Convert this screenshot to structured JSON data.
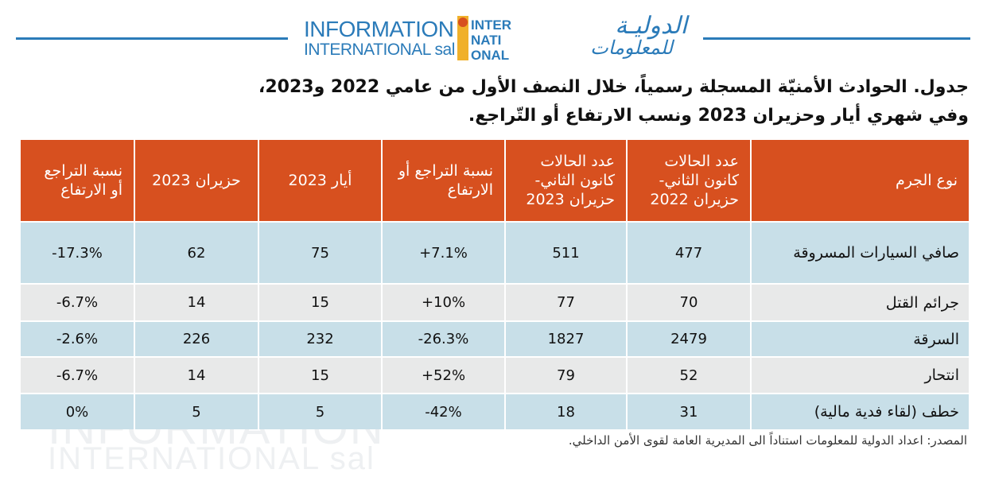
{
  "logo": {
    "en_line1": "INFORMATION",
    "en_line2": "INTERNATIONAL sal",
    "mark_line1": "INTER",
    "mark_line2": "NATI",
    "mark_line3": "ONAL",
    "ar_line1": "الدوليـة",
    "ar_line2": "للمعلومات",
    "brand_blue": "#2b7bb9",
    "brand_orange": "#f0b02a"
  },
  "title": {
    "line1": "جدول. الحوادث الأمنيّة المسجلة رسمياً، خلال النصف الأول من عامي 2022 و2023،",
    "line2": "وفي شهري أيار وحزيران 2023 ونسب الارتفاع أو التّراجع."
  },
  "table": {
    "header_color": "#d7501f",
    "columns": [
      "نوع الجرم",
      "عدد الحالات كانون الثاني- حزيران 2022",
      "عدد الحالات كانون الثاني- حزيران 2023",
      "نسبة التراجع أو الارتفاع",
      "أيار 2023",
      "حزيران 2023",
      "نسبة التراجع أو الارتفاع"
    ],
    "rows": [
      {
        "crime": "صافي السيارات المسروقة",
        "h1_2022": "477",
        "h1_2023": "511",
        "change_h1": "+7.1%",
        "may_2023": "75",
        "june_2023": "62",
        "change_month": "-17.3%"
      },
      {
        "crime": "جرائم القتل",
        "h1_2022": "70",
        "h1_2023": "77",
        "change_h1": "+10%",
        "may_2023": "15",
        "june_2023": "14",
        "change_month": "-6.7%"
      },
      {
        "crime": "السرقة",
        "h1_2022": "2479",
        "h1_2023": "1827",
        "change_h1": "-26.3%",
        "may_2023": "232",
        "june_2023": "226",
        "change_month": "-2.6%"
      },
      {
        "crime": "انتحار",
        "h1_2022": "52",
        "h1_2023": "79",
        "change_h1": "+52%",
        "may_2023": "15",
        "june_2023": "14",
        "change_month": "-6.7%"
      },
      {
        "crime": "خطف (لقاء فدية مالية)",
        "h1_2022": "31",
        "h1_2023": "18",
        "change_h1": "-42%",
        "may_2023": "5",
        "june_2023": "5",
        "change_month": "0%"
      }
    ]
  },
  "source": "المصدر: اعداد الدولية للمعلومات استناداً الى المديرية العامة لقوى الأمن الداخلي."
}
